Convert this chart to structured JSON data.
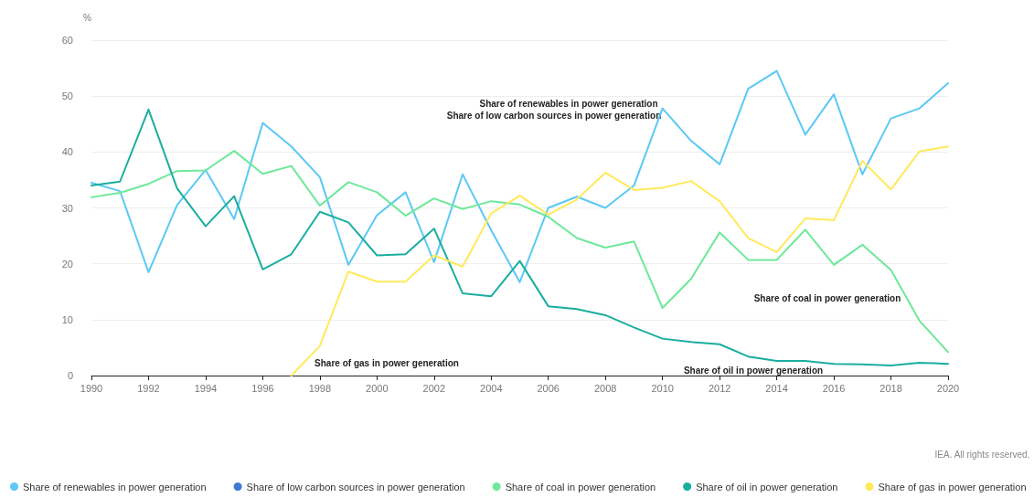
{
  "chart_data": {
    "type": "line",
    "ylabel": "%",
    "x": [
      1990,
      1991,
      1992,
      1993,
      1994,
      1995,
      1996,
      1997,
      1998,
      1999,
      2000,
      2001,
      2002,
      2003,
      2004,
      2005,
      2006,
      2007,
      2008,
      2009,
      2010,
      2011,
      2012,
      2013,
      2014,
      2015,
      2016,
      2017,
      2018,
      2019,
      2020
    ],
    "series": [
      {
        "name": "Share of renewables in power generation",
        "color": "#5bc8f5",
        "values": [
          34.5,
          33,
          18.5,
          30.5,
          36.8,
          28,
          45.2,
          41,
          35.5,
          19.8,
          28.7,
          32.8,
          20.3,
          36,
          26,
          16.7,
          30,
          32,
          30,
          34,
          47.8,
          42,
          37.8,
          51.3,
          54.5,
          43.1,
          50.3,
          36,
          46,
          47.8,
          52.3
        ]
      },
      {
        "name": "Share of low carbon sources in power generation",
        "color": "#3e7ad3",
        "values": [
          null,
          null,
          null,
          null,
          null,
          null,
          null,
          null,
          null,
          null,
          null,
          null,
          null,
          null,
          null,
          null,
          null,
          null,
          null,
          null,
          null,
          null,
          null,
          null,
          null,
          null,
          null,
          null,
          null,
          null,
          null
        ]
      },
      {
        "name": "Share of coal in power generation",
        "color": "#6ee89a",
        "values": [
          31.9,
          32.7,
          34.3,
          36.6,
          36.7,
          40.2,
          36.1,
          37.5,
          30.4,
          34.6,
          32.8,
          28.6,
          31.7,
          29.8,
          31.2,
          30.6,
          28.4,
          24.6,
          22.9,
          24,
          12.1,
          17.3,
          25.6,
          20.7,
          20.7,
          26.1,
          19.8,
          23.4,
          18.9,
          9.8,
          4.2
        ]
      },
      {
        "name": "Share of oil in power generation",
        "color": "#1aae9f",
        "values": [
          34,
          34.7,
          47.6,
          33.5,
          26.7,
          32.1,
          19,
          21.7,
          29.3,
          27.4,
          21.5,
          21.7,
          26.3,
          14.7,
          14.2,
          20.5,
          12.4,
          11.9,
          10.8,
          8.6,
          6.6,
          6,
          5.6,
          3.4,
          2.6,
          2.6,
          2.1,
          2,
          1.8,
          2.3,
          2.1
        ]
      },
      {
        "name": "Share of gas in power generation",
        "color": "#ffe95c",
        "values": [
          null,
          null,
          null,
          null,
          null,
          null,
          null,
          0,
          5.3,
          18.6,
          16.8,
          16.8,
          21.5,
          19.5,
          29,
          32.2,
          28.8,
          31.5,
          36.3,
          33.2,
          33.6,
          34.8,
          31.2,
          24.6,
          22.1,
          28.1,
          27.8,
          38.4,
          33.3,
          40.1,
          41
        ]
      }
    ],
    "xlim": [
      1990,
      2020
    ],
    "xticks": [
      1990,
      1992,
      1994,
      1996,
      1998,
      2000,
      2002,
      2004,
      2006,
      2008,
      2010,
      2012,
      2014,
      2016,
      2018,
      2020
    ],
    "ylim": [
      0,
      60
    ],
    "yticks": [
      0,
      10,
      20,
      30,
      40,
      50,
      60
    ],
    "grid": "y",
    "legend": "bottom",
    "marker": "none",
    "line_style": "solid",
    "annotations": [
      "Share of renewables in power generation",
      "Share of low carbon sources in power generation",
      "Share of coal in power generation",
      "Share of gas in power generation",
      "Share of oil in power generation",
      "IEA. All rights reserved."
    ]
  }
}
